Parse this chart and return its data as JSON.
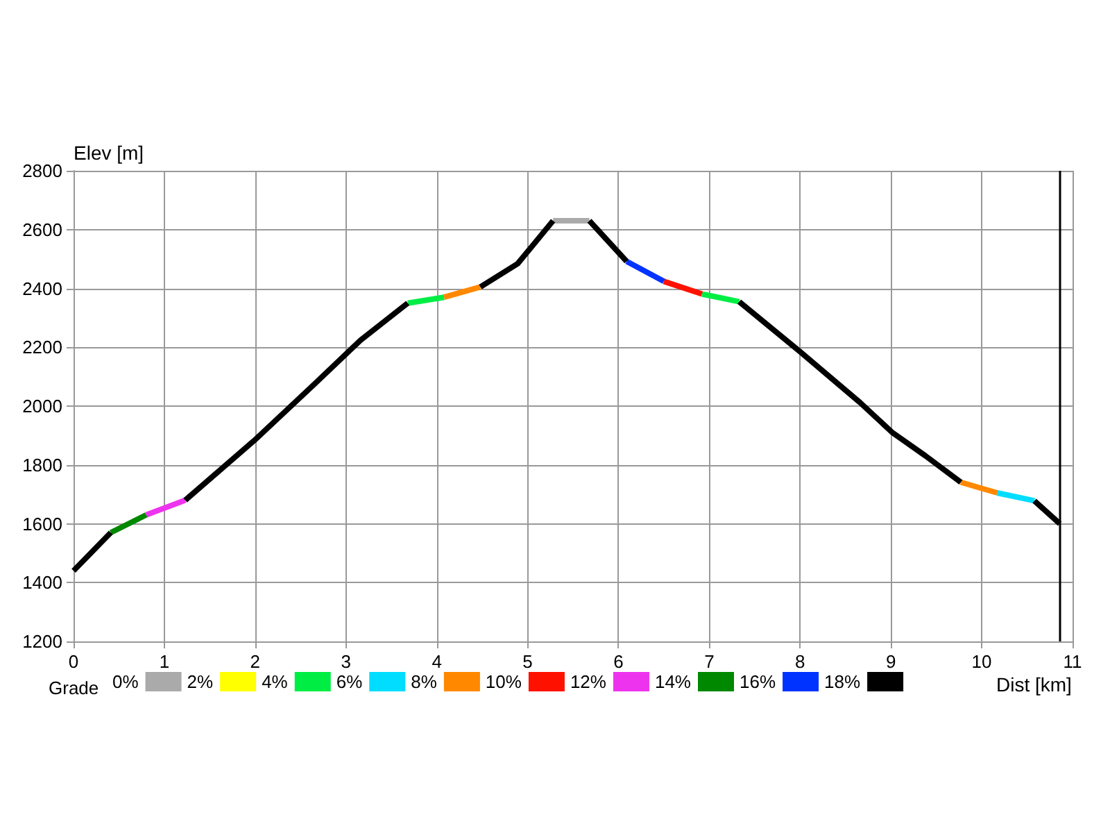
{
  "chart_data": {
    "type": "line",
    "xlabel": "Dist [km]",
    "ylabel": "Elev [m]",
    "legend_title": "Grade",
    "legend": "bottom",
    "grid": true,
    "marker": "none",
    "line_style": "solid",
    "xlim": [
      0,
      11
    ],
    "xticks": [
      0,
      1,
      2,
      3,
      4,
      5,
      6,
      7,
      8,
      9,
      10,
      11
    ],
    "ylim": [
      1200,
      2800
    ],
    "yticks": [
      1200,
      1400,
      1600,
      1800,
      2000,
      2200,
      2400,
      2600,
      2800
    ],
    "ref_lines": [
      {
        "axis": "x",
        "value": 10.86,
        "color": "#000000"
      }
    ],
    "series": [
      {
        "name": "0%",
        "color": "#aaaaaa",
        "x": [
          5.28,
          5.68
        ],
        "values": [
          2630,
          2630
        ]
      },
      {
        "name": "2%",
        "color": "#ffff00"
      },
      {
        "name": "4%",
        "color": "#00ee44",
        "x": [
          3.68,
          4.08,
          null,
          6.92,
          7.33
        ],
        "values": [
          2350,
          2370,
          null,
          2381,
          2355
        ]
      },
      {
        "name": "6%",
        "color": "#00ddff",
        "x": [
          10.17,
          10.58
        ],
        "values": [
          1705,
          1678
        ]
      },
      {
        "name": "8%",
        "color": "#ff8800",
        "x": [
          4.08,
          4.48,
          null,
          9.77,
          10.17
        ],
        "values": [
          2370,
          2405,
          null,
          1741,
          1705
        ]
      },
      {
        "name": "10%",
        "color": "#ff1100",
        "x": [
          6.5,
          6.92
        ],
        "values": [
          2424,
          2381
        ]
      },
      {
        "name": "12%",
        "color": "#ee33ee",
        "x": [
          0.8,
          1.23
        ],
        "values": [
          1630,
          1680
        ]
      },
      {
        "name": "14%",
        "color": "#008800",
        "x": [
          0.41,
          0.8
        ],
        "values": [
          1570,
          1630
        ]
      },
      {
        "name": "16%",
        "color": "#0033ff",
        "x": [
          6.09,
          6.5
        ],
        "values": [
          2492,
          2424
        ]
      },
      {
        "name": "18%",
        "color": "#000000",
        "x": [
          0,
          0.41,
          null,
          1.23,
          1.99,
          2.65,
          3.16,
          3.68,
          null,
          4.48,
          4.89,
          5.28,
          null,
          5.68,
          6.09,
          null,
          7.33,
          8.0,
          8.66,
          9.02,
          9.38,
          9.77,
          null,
          10.58,
          10.86
        ],
        "values": [
          1440,
          1570,
          null,
          1680,
          1883,
          2074,
          2224,
          2350,
          null,
          2405,
          2484,
          2630,
          null,
          2630,
          2492,
          null,
          2355,
          2185,
          2012,
          1909,
          1831,
          1741,
          null,
          1678,
          1600
        ]
      }
    ]
  }
}
